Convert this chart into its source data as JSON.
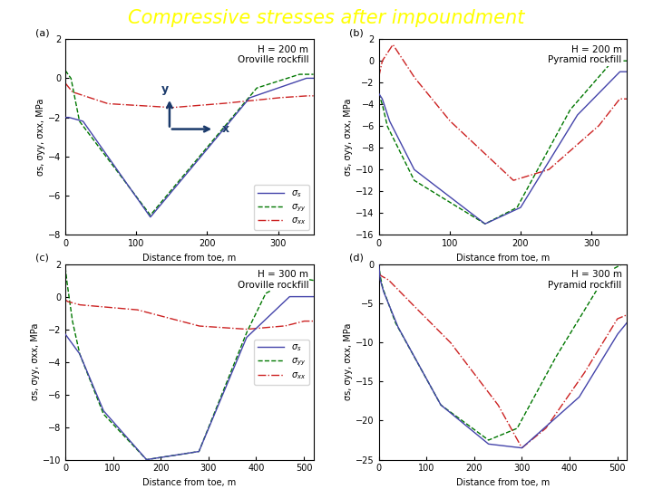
{
  "title": "Compressive stresses after impoundment",
  "title_color": "#FFFF00",
  "title_bg_color": "#1f3d6e",
  "title_fontsize": 15,
  "subplots": [
    {
      "label": "(a)",
      "subtitle": "H = 200 m\nOroville rockfill",
      "xlim": [
        0,
        350
      ],
      "ylim": [
        -8,
        2
      ],
      "yticks": [
        -8,
        -6,
        -4,
        -2,
        0,
        2
      ],
      "xticks": [
        0,
        100,
        200,
        300
      ],
      "show_legend": true,
      "show_xy_arrows": true,
      "legend_loc": "lower right"
    },
    {
      "label": "(b)",
      "subtitle": "H = 200 m\nPyramid rockfill",
      "xlim": [
        0,
        350
      ],
      "ylim": [
        -16,
        2
      ],
      "yticks": [
        -16,
        -14,
        -12,
        -10,
        -8,
        -6,
        -4,
        -2,
        0,
        2
      ],
      "xticks": [
        0,
        100,
        200,
        300
      ],
      "show_legend": false,
      "show_xy_arrows": false,
      "legend_loc": ""
    },
    {
      "label": "(c)",
      "subtitle": "H = 300 m\nOroville rockfill",
      "xlim": [
        0,
        520
      ],
      "ylim": [
        -10,
        2
      ],
      "yticks": [
        -10,
        -8,
        -6,
        -4,
        -2,
        0,
        2
      ],
      "xticks": [
        0,
        100,
        200,
        300,
        400,
        500
      ],
      "show_legend": true,
      "show_xy_arrows": false,
      "legend_loc": "center right"
    },
    {
      "label": "(d)",
      "subtitle": "H = 300 m\nPyramid rockfill",
      "xlim": [
        0,
        520
      ],
      "ylim": [
        -25,
        0
      ],
      "yticks": [
        -25,
        -20,
        -15,
        -10,
        -5,
        0
      ],
      "xticks": [
        0,
        100,
        200,
        300,
        400,
        500
      ],
      "show_legend": false,
      "show_xy_arrows": false,
      "legend_loc": ""
    }
  ],
  "colors": {
    "sigma_s": "#4444aa",
    "sigma_yy": "#007700",
    "sigma_xx": "#cc2222"
  },
  "xlabel": "Distance from toe, m",
  "ylabel_a": "σs, σyy, σxx, MPa",
  "ylabel_bcd": "σs, σyy, σxx, MPa"
}
